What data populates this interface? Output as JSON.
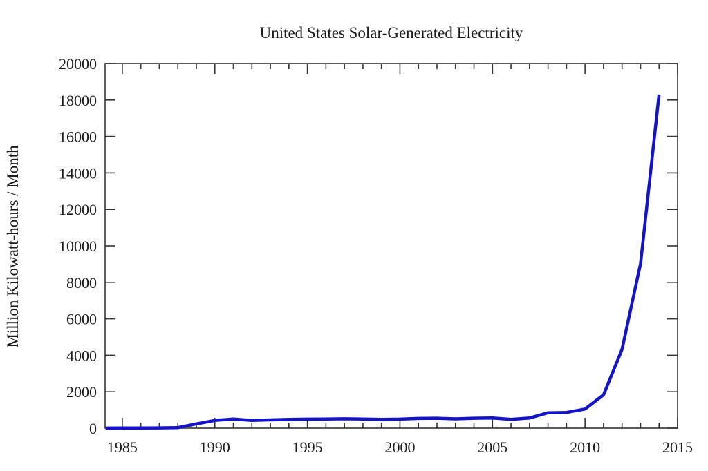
{
  "title": "United States Solar-Generated Electricity",
  "colors": {
    "line": "#1414c6",
    "axis": "#333333",
    "text": "#1a1a1a",
    "background": "#ffffff"
  },
  "chart_data": {
    "type": "line",
    "title": "United States Solar-Generated Electricity",
    "xlabel": "",
    "ylabel": "Million Kilowatt-hours / Month",
    "xlim": [
      1984.07,
      2015
    ],
    "ylim": [
      0,
      20000
    ],
    "x_major_ticks": [
      1985,
      1990,
      1995,
      2000,
      2005,
      2010,
      2015
    ],
    "x_minor_tick_step": 1,
    "y_major_ticks": [
      0,
      2000,
      4000,
      6000,
      8000,
      10000,
      12000,
      14000,
      16000,
      18000,
      20000
    ],
    "grid": false,
    "legend_position": "none",
    "series": [
      {
        "name": "US solar-generated electricity",
        "color": "#1414c6",
        "x": [
          1984.1,
          1985,
          1986,
          1987,
          1988,
          1989,
          1990,
          1991,
          1992,
          1993,
          1994,
          1995,
          1996,
          1997,
          1998,
          1999,
          2000,
          2001,
          2002,
          2003,
          2004,
          2005,
          2006,
          2007,
          2008,
          2009,
          2010,
          2011,
          2012,
          2013,
          2014
        ],
        "y": [
          5,
          8,
          12,
          15,
          30,
          235,
          425,
          505,
          425,
          455,
          480,
          495,
          500,
          515,
          505,
          485,
          495,
          535,
          545,
          510,
          545,
          555,
          485,
          555,
          845,
          865,
          1050,
          1830,
          4330,
          9040,
          18300
        ]
      }
    ]
  }
}
